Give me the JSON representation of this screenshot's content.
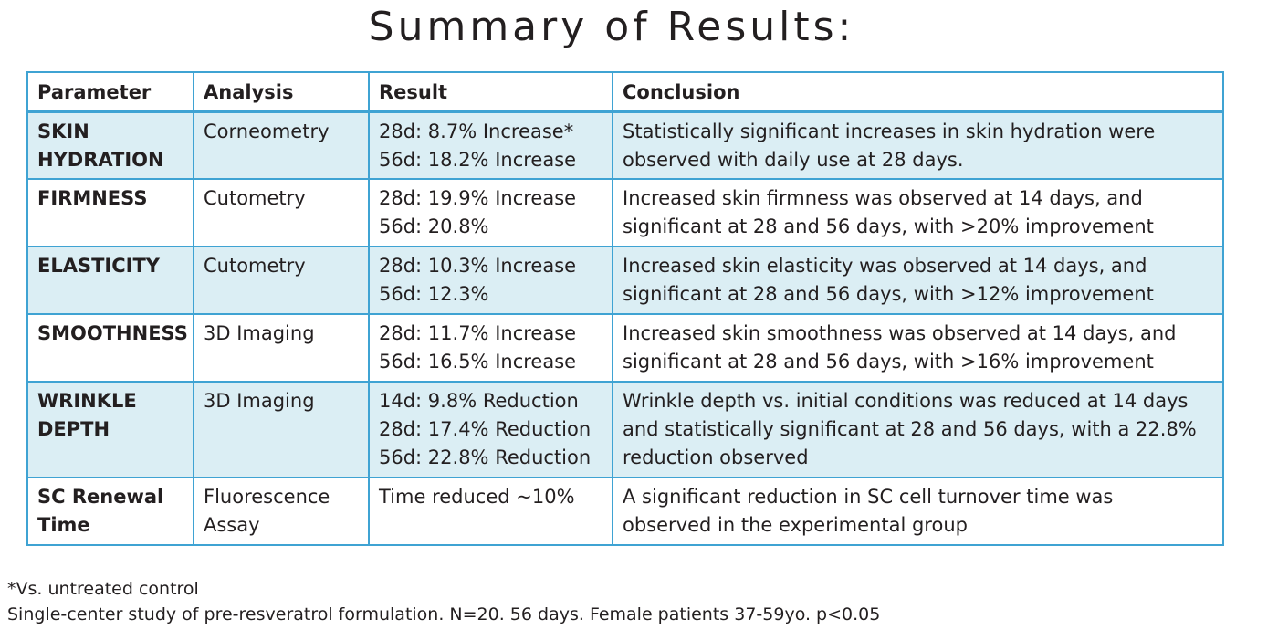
{
  "title": "Summary of Results:",
  "table": {
    "headers": [
      "Parameter",
      "Analysis",
      "Result",
      "Conclusion"
    ],
    "rows": [
      {
        "parameter": "SKIN\nHYDRATION",
        "analysis": "Corneometry",
        "result": "28d: 8.7% Increase*\n56d: 18.2% Increase",
        "conclusion": "Statistically significant increases in skin hydration were\nobserved with daily use at 28 days."
      },
      {
        "parameter": "FIRMNESS",
        "analysis": "Cutometry",
        "result": "28d: 19.9% Increase\n56d: 20.8%",
        "conclusion": "Increased skin firmness was observed at 14 days, and\nsignificant at 28 and 56 days, with >20% improvement"
      },
      {
        "parameter": "ELASTICITY",
        "analysis": "Cutometry",
        "result": "28d: 10.3% Increase\n56d: 12.3%",
        "conclusion": "Increased skin elasticity was observed at 14 days, and\nsignificant at 28 and 56 days, with >12% improvement"
      },
      {
        "parameter": "SMOOTHNESS",
        "analysis": "3D Imaging",
        "result": "28d: 11.7% Increase\n56d: 16.5% Increase",
        "conclusion": "Increased skin smoothness was observed at 14 days, and\nsignificant at 28 and 56 days, with >16% improvement"
      },
      {
        "parameter": "WRINKLE\nDEPTH",
        "analysis": "3D Imaging",
        "result": "14d: 9.8% Reduction\n28d: 17.4% Reduction\n56d: 22.8% Reduction",
        "conclusion": "Wrinkle depth vs. initial conditions was reduced at 14 days\nand statistically significant at 28 and 56 days, with a 22.8%\nreduction observed"
      },
      {
        "parameter": "SC Renewal\nTime",
        "analysis": "Fluorescence\nAssay",
        "result": "Time reduced ~10%",
        "conclusion": "A significant reduction in SC cell turnover time was\nobserved in the experimental group"
      }
    ]
  },
  "footnotes": {
    "asterisk": "*Vs. untreated control",
    "study": "Single-center study of pre-resveratrol formulation. N=20. 56 days. Female patients 37-59yo. p<0.05"
  },
  "colors": {
    "border": "#3fa3d3",
    "shaded_row": "#dbeef4",
    "text": "#231f20"
  }
}
